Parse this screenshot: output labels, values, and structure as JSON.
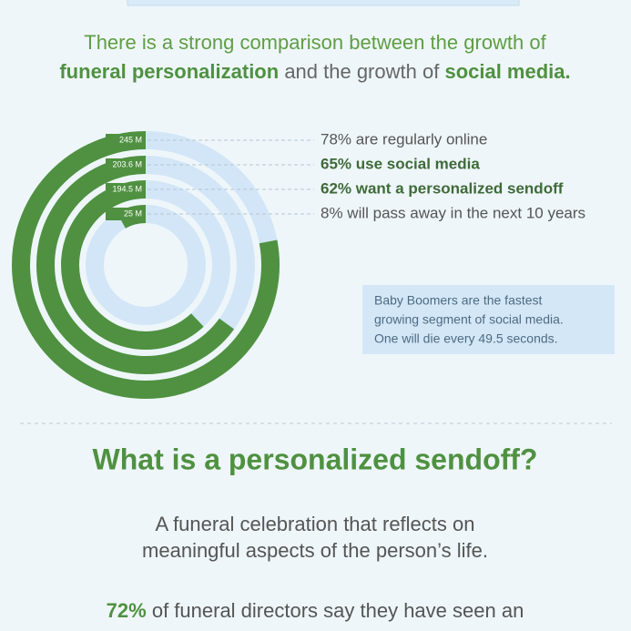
{
  "header": {
    "intro": "There is a strong comparison between the growth of",
    "highlight1": "funeral personalization",
    "connector": "and the growth of",
    "highlight2": "social media."
  },
  "chart_data": {
    "type": "radial",
    "categories": [
      "245 M",
      "203.6 M",
      "194.5 M",
      "25 M"
    ],
    "values": [
      78,
      65,
      62,
      8
    ],
    "value_labels": [
      "78% are regularly online",
      "65% use social media",
      "62% want a personalized sendoff",
      "8% will pass away in the next 10 years"
    ],
    "bold": [
      false,
      true,
      true,
      false
    ],
    "ylim": [
      0,
      100
    ],
    "color": "#4f9140",
    "track_color": "#d2e6f7"
  },
  "note": [
    "Baby Boomers are the fastest",
    "growing segment of social media.",
    "One will die every 49.5 seconds."
  ],
  "section": {
    "heading": "What is a personalized sendoff?",
    "definition": [
      "A funeral celebration that reflects on",
      "meaningful aspects of the person’s life."
    ],
    "stat": "72%",
    "stat_text": "of funeral directors say they have seen an"
  }
}
